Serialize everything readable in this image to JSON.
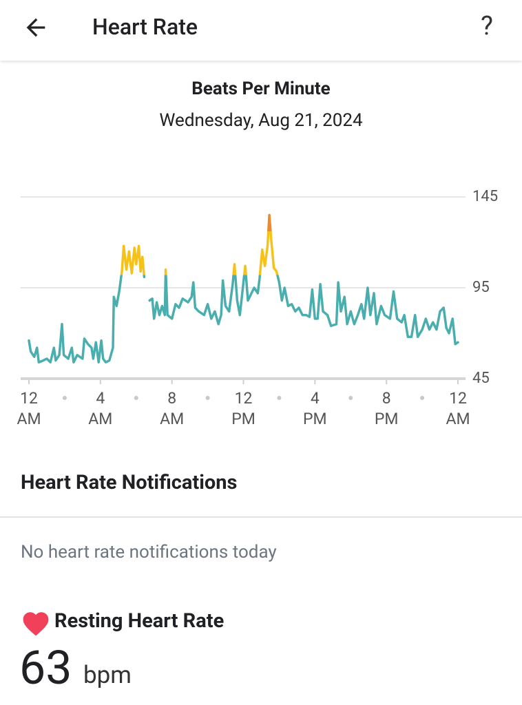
{
  "header": {
    "title": "Heart Rate",
    "help": "?"
  },
  "chart_data": {
    "type": "line",
    "title": "Beats Per Minute",
    "subtitle": "Wednesday, Aug 21, 2024",
    "x": [
      0,
      0.1,
      0.3,
      0.45,
      0.55,
      0.8,
      1.0,
      1.2,
      1.4,
      1.5,
      1.7,
      1.85,
      1.95,
      2.2,
      2.4,
      2.5,
      2.7,
      3.0,
      3.1,
      3.3,
      3.5,
      3.6,
      3.75,
      3.9,
      4.05,
      4.15,
      4.3,
      4.5,
      4.7,
      4.75,
      4.9,
      5.05,
      5.2,
      5.3,
      5.45,
      5.6,
      5.75,
      5.9,
      6.0,
      6.15,
      6.25,
      6.35,
      6.45,
      6.6,
      6.75,
      6.9,
      7.0,
      7.15,
      7.3,
      7.45,
      7.6,
      7.65,
      7.75,
      8.0,
      8.2,
      8.4,
      8.6,
      8.9,
      9.1,
      9.2,
      9.3,
      9.5,
      9.8,
      10.0,
      10.2,
      10.4,
      10.6,
      10.75,
      10.85,
      11.0,
      11.2,
      11.4,
      11.5,
      11.65,
      11.8,
      12.0,
      12.1,
      12.25,
      12.45,
      12.6,
      12.8,
      12.9,
      13.05,
      13.2,
      13.35,
      13.45,
      13.55,
      13.7,
      13.85,
      14.0,
      14.15,
      14.3,
      14.5,
      14.7,
      14.9,
      15.1,
      15.3,
      15.5,
      15.7,
      15.85,
      16.0,
      16.15,
      16.3,
      16.45,
      16.7,
      16.9,
      17.2,
      17.3,
      17.45,
      17.65,
      17.8,
      18.0,
      18.2,
      18.4,
      18.6,
      18.75,
      18.95,
      19.1,
      19.3,
      19.45,
      19.7,
      19.9,
      20.2,
      20.4,
      20.6,
      20.85,
      21.0,
      21.2,
      21.4,
      21.6,
      21.75,
      22.0,
      22.2,
      22.4,
      22.6,
      22.8,
      23.0,
      23.2,
      23.35,
      23.5,
      23.7,
      23.85,
      24
    ],
    "values": [
      66,
      60,
      57,
      62,
      54,
      55,
      56,
      54,
      62,
      55,
      58,
      75,
      58,
      56,
      62,
      54,
      58,
      56,
      67,
      64,
      62,
      56,
      65,
      54,
      66,
      56,
      54,
      55,
      62,
      90,
      85,
      93,
      104,
      118,
      105,
      115,
      103,
      117,
      108,
      118,
      104,
      112,
      101,
      null,
      88,
      89,
      78,
      87,
      80,
      85,
      80,
      105,
      80,
      78,
      86,
      84,
      89,
      87,
      90,
      98,
      84,
      82,
      80,
      86,
      78,
      82,
      75,
      80,
      99,
      85,
      82,
      97,
      108,
      88,
      80,
      98,
      107,
      88,
      92,
      95,
      92,
      100,
      116,
      107,
      118,
      135,
      122,
      106,
      104,
      98,
      88,
      95,
      85,
      86,
      82,
      84,
      80,
      80,
      79,
      94,
      78,
      78,
      97,
      82,
      80,
      74,
      75,
      98,
      82,
      90,
      75,
      82,
      75,
      80,
      86,
      78,
      95,
      80,
      92,
      75,
      85,
      80,
      78,
      93,
      78,
      76,
      80,
      68,
      68,
      80,
      68,
      72,
      78,
      72,
      76,
      72,
      82,
      84,
      73,
      70,
      78,
      64,
      65
    ],
    "color": "#4aaeae",
    "zones": [
      {
        "from": 102,
        "color": "#f6c21a"
      },
      {
        "from": 126,
        "color": "#ee8a2e"
      }
    ],
    "xlim": [
      0,
      24
    ],
    "xticks": [
      {
        "value": 0,
        "label": "12 AM"
      },
      {
        "value": 4,
        "label": "4 AM"
      },
      {
        "value": 8,
        "label": "8 AM"
      },
      {
        "value": 12,
        "label": "12 PM"
      },
      {
        "value": 16,
        "label": "4 PM"
      },
      {
        "value": 20,
        "label": "8 PM"
      },
      {
        "value": 24,
        "label": "12 AM"
      }
    ],
    "ylim": [
      45,
      145
    ],
    "yticks": [
      45,
      95,
      145
    ],
    "grid": true
  },
  "notifications": {
    "title": "Heart Rate Notifications",
    "empty": "No heart rate notifications today"
  },
  "resting": {
    "title": "Resting Heart Rate",
    "value": 63,
    "unit": "bpm"
  }
}
